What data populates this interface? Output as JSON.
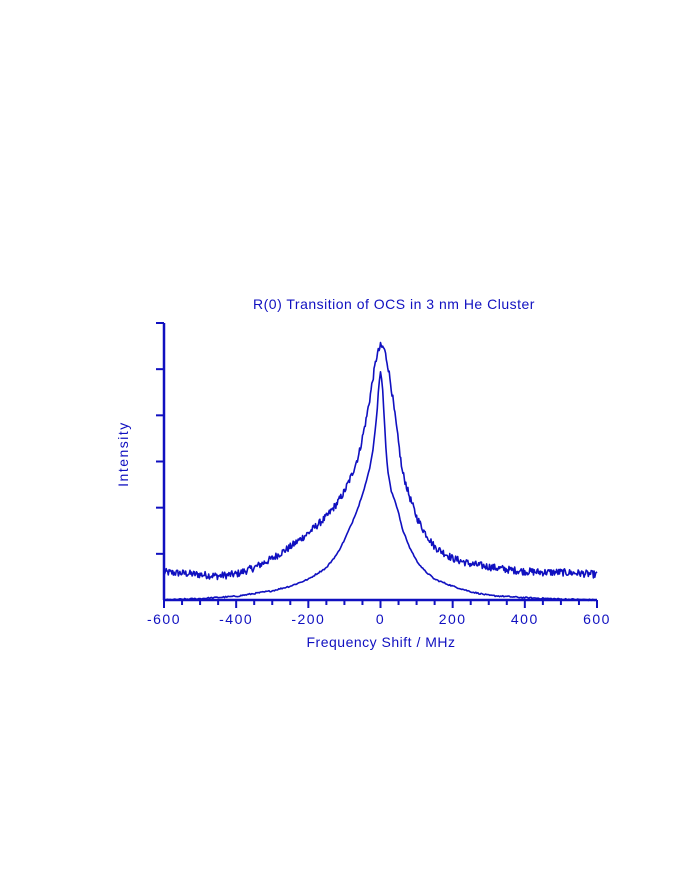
{
  "chart_data": {
    "type": "line",
    "title": "R(0) Transition of OCS in 3 nm He Cluster",
    "xlabel": "Frequency Shift / MHz",
    "ylabel": "Intensity",
    "xlim": [
      -600,
      600
    ],
    "ylim": [
      0,
      6
    ],
    "x_ticks": [
      "-600",
      "-400",
      "-200",
      "0",
      "200",
      "400",
      "600"
    ],
    "y_tick_labels_shown": false,
    "grid": false,
    "legend": "none",
    "color": "#1010c0",
    "series": [
      {
        "values_xy": [
          [
            -600,
            0.6
          ],
          [
            -550,
            0.58
          ],
          [
            -500,
            0.55
          ],
          [
            -450,
            0.52
          ],
          [
            -400,
            0.56
          ],
          [
            -350,
            0.7
          ],
          [
            -300,
            0.9
          ],
          [
            -250,
            1.15
          ],
          [
            -200,
            1.45
          ],
          [
            -150,
            1.8
          ],
          [
            -120,
            2.1
          ],
          [
            -100,
            2.35
          ],
          [
            -80,
            2.7
          ],
          [
            -60,
            3.15
          ],
          [
            -40,
            3.9
          ],
          [
            -30,
            4.35
          ],
          [
            -20,
            4.85
          ],
          [
            -10,
            5.3
          ],
          [
            0,
            5.5
          ],
          [
            10,
            5.45
          ],
          [
            20,
            5.1
          ],
          [
            30,
            4.6
          ],
          [
            40,
            4.0
          ],
          [
            50,
            3.4
          ],
          [
            60,
            2.8
          ],
          [
            80,
            2.25
          ],
          [
            100,
            1.8
          ],
          [
            120,
            1.5
          ],
          [
            150,
            1.15
          ],
          [
            200,
            0.9
          ],
          [
            250,
            0.78
          ],
          [
            300,
            0.72
          ],
          [
            350,
            0.66
          ],
          [
            400,
            0.62
          ],
          [
            450,
            0.6
          ],
          [
            500,
            0.6
          ],
          [
            550,
            0.58
          ],
          [
            600,
            0.55
          ]
        ],
        "noise_amplitude": 0.08
      },
      {
        "values_xy": [
          [
            -600,
            0.0
          ],
          [
            -500,
            0.03
          ],
          [
            -400,
            0.08
          ],
          [
            -300,
            0.2
          ],
          [
            -250,
            0.3
          ],
          [
            -200,
            0.45
          ],
          [
            -150,
            0.7
          ],
          [
            -120,
            1.0
          ],
          [
            -100,
            1.3
          ],
          [
            -80,
            1.65
          ],
          [
            -60,
            2.05
          ],
          [
            -40,
            2.55
          ],
          [
            -30,
            2.85
          ],
          [
            -20,
            3.3
          ],
          [
            -10,
            4.05
          ],
          [
            -5,
            4.6
          ],
          [
            0,
            4.95
          ],
          [
            5,
            4.7
          ],
          [
            10,
            4.0
          ],
          [
            15,
            3.3
          ],
          [
            20,
            2.8
          ],
          [
            30,
            2.35
          ],
          [
            40,
            2.15
          ],
          [
            50,
            1.9
          ],
          [
            60,
            1.55
          ],
          [
            80,
            1.15
          ],
          [
            100,
            0.85
          ],
          [
            120,
            0.65
          ],
          [
            150,
            0.45
          ],
          [
            200,
            0.3
          ],
          [
            250,
            0.18
          ],
          [
            300,
            0.1
          ],
          [
            400,
            0.05
          ],
          [
            500,
            0.02
          ],
          [
            600,
            0.0
          ]
        ],
        "noise_amplitude": 0.015
      }
    ]
  }
}
